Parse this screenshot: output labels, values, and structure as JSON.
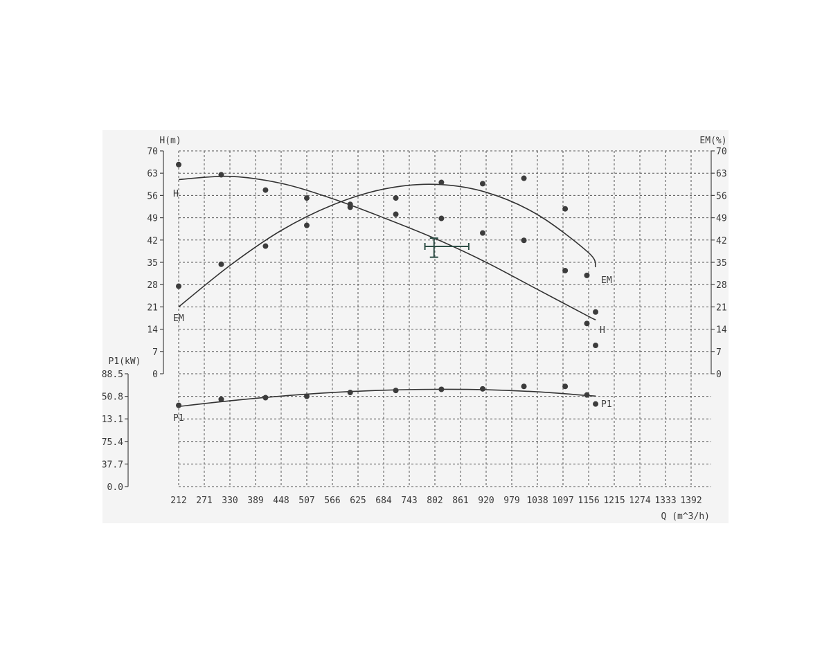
{
  "chart_data": {
    "type": "scatter",
    "x": {
      "label": "Q (m^3/h)",
      "ticks": [
        "212",
        "271",
        "330",
        "389",
        "448",
        "507",
        "566",
        "625",
        "684",
        "743",
        "802",
        "861",
        "920",
        "979",
        "1038",
        "1097",
        "1156",
        "1215",
        "1274",
        "1333",
        "1392"
      ],
      "range": [
        212,
        1392
      ]
    },
    "axes": {
      "head": {
        "label": "H(m)",
        "ticks": [
          "0",
          "7",
          "14",
          "21",
          "28",
          "35",
          "42",
          "49",
          "56",
          "63",
          "70"
        ],
        "range": [
          0,
          70
        ]
      },
      "efficiency": {
        "label": "EM(%)",
        "ticks": [
          "0",
          "7",
          "14",
          "21",
          "28",
          "35",
          "42",
          "49",
          "56",
          "63",
          "70"
        ],
        "range": [
          0,
          70
        ]
      },
      "power": {
        "label": "P1(kW)",
        "ticks": [
          "0.0",
          "37.7",
          "75.4",
          "13.1",
          "50.8",
          "88.5"
        ],
        "range": [
          0,
          5
        ]
      }
    },
    "series": [
      {
        "name": "H",
        "axis": "head",
        "end_label": "H",
        "points": [
          [
            212,
            65.7
          ],
          [
            310,
            62.5
          ],
          [
            412,
            57.7
          ],
          [
            507,
            55.2
          ],
          [
            607,
            53.2
          ],
          [
            712,
            50.1
          ],
          [
            817,
            48.8
          ],
          [
            912,
            44.2
          ],
          [
            1007,
            41.9
          ],
          [
            1102,
            32.4
          ],
          [
            1152,
            15.8
          ],
          [
            1172,
            8.9
          ]
        ],
        "curve": [
          [
            212,
            61.0
          ],
          [
            330,
            62.0
          ],
          [
            448,
            59.8
          ],
          [
            566,
            55.0
          ],
          [
            684,
            49.0
          ],
          [
            802,
            42.5
          ],
          [
            920,
            35.0
          ],
          [
            1038,
            26.5
          ],
          [
            1156,
            18.0
          ],
          [
            1172,
            17.0
          ]
        ]
      },
      {
        "name": "EM",
        "axis": "efficiency",
        "end_label": "EM",
        "points": [
          [
            212,
            27.5
          ],
          [
            310,
            34.4
          ],
          [
            412,
            40.1
          ],
          [
            507,
            46.6
          ],
          [
            607,
            52.3
          ],
          [
            712,
            55.2
          ],
          [
            817,
            60.1
          ],
          [
            912,
            59.7
          ],
          [
            1007,
            61.4
          ],
          [
            1102,
            51.8
          ],
          [
            1152,
            30.9
          ],
          [
            1172,
            19.4
          ]
        ],
        "curve": [
          [
            212,
            21.0
          ],
          [
            330,
            34.0
          ],
          [
            448,
            45.0
          ],
          [
            566,
            53.0
          ],
          [
            684,
            58.0
          ],
          [
            802,
            59.5
          ],
          [
            920,
            57.0
          ],
          [
            1038,
            50.0
          ],
          [
            1156,
            38.0
          ],
          [
            1172,
            33.5
          ]
        ]
      },
      {
        "name": "P1",
        "axis": "power",
        "end_label": "P1",
        "points": [
          [
            212,
            3.6
          ],
          [
            310,
            3.87
          ],
          [
            412,
            3.94
          ],
          [
            507,
            4.0
          ],
          [
            607,
            4.17
          ],
          [
            712,
            4.26
          ],
          [
            817,
            4.31
          ],
          [
            912,
            4.33
          ],
          [
            1007,
            4.44
          ],
          [
            1102,
            4.44
          ],
          [
            1152,
            4.06
          ],
          [
            1172,
            3.66
          ]
        ],
        "curve": [
          [
            212,
            3.55
          ],
          [
            330,
            3.8
          ],
          [
            448,
            4.01
          ],
          [
            566,
            4.17
          ],
          [
            684,
            4.27
          ],
          [
            802,
            4.31
          ],
          [
            920,
            4.29
          ],
          [
            1038,
            4.2
          ],
          [
            1156,
            4.03
          ],
          [
            1172,
            4.02
          ]
        ]
      }
    ],
    "annotation": {
      "type": "error-cross",
      "x": 800,
      "y": 40.0,
      "x_err": [
        779,
        880
      ],
      "y_err": [
        36.6,
        42.6
      ]
    },
    "grid": true
  }
}
